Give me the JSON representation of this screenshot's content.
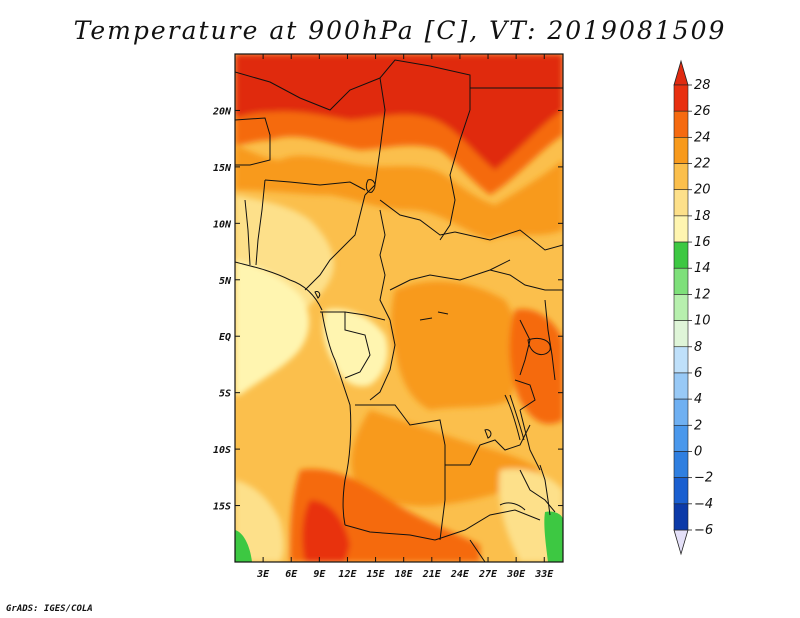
{
  "title": "Temperature at 900hPa [C], VT: 2019081509",
  "credit": "GrADS: IGES/COLA",
  "map": {
    "lon_range": [
      0,
      35
    ],
    "lat_range": [
      -20,
      25
    ],
    "lon_ticks": [
      {
        "value": 3,
        "label": "3E"
      },
      {
        "value": 6,
        "label": "6E"
      },
      {
        "value": 9,
        "label": "9E"
      },
      {
        "value": 12,
        "label": "12E"
      },
      {
        "value": 15,
        "label": "15E"
      },
      {
        "value": 18,
        "label": "18E"
      },
      {
        "value": 21,
        "label": "21E"
      },
      {
        "value": 24,
        "label": "24E"
      },
      {
        "value": 27,
        "label": "27E"
      },
      {
        "value": 30,
        "label": "30E"
      },
      {
        "value": 33,
        "label": "33E"
      }
    ],
    "lat_ticks": [
      {
        "value": 20,
        "label": "20N"
      },
      {
        "value": 15,
        "label": "15N"
      },
      {
        "value": 10,
        "label": "10N"
      },
      {
        "value": 5,
        "label": "5N"
      },
      {
        "value": 0,
        "label": "EQ"
      },
      {
        "value": -5,
        "label": "5S"
      },
      {
        "value": -10,
        "label": "10S"
      },
      {
        "value": -15,
        "label": "15S"
      }
    ]
  },
  "colorbar": {
    "levels": [
      "-6",
      "-4",
      "-2",
      "0",
      "2",
      "4",
      "6",
      "8",
      "10",
      "12",
      "14",
      "16",
      "18",
      "20",
      "22",
      "24",
      "26",
      "28"
    ],
    "colors": [
      "#0a0a7a",
      "#0c3aa8",
      "#1a5fd0",
      "#2f7fe0",
      "#4a98ec",
      "#6fb0f2",
      "#98c9f6",
      "#bfe0fa",
      "#dff5d8",
      "#b7f0ae",
      "#7ee07a",
      "#3dc842",
      "#fff5b0",
      "#fde08a",
      "#fbbf4c",
      "#f89a1c",
      "#f56a10",
      "#e83010",
      "#d81410"
    ],
    "under_color": "#e4e0f8",
    "over_color": "#e02a10"
  }
}
